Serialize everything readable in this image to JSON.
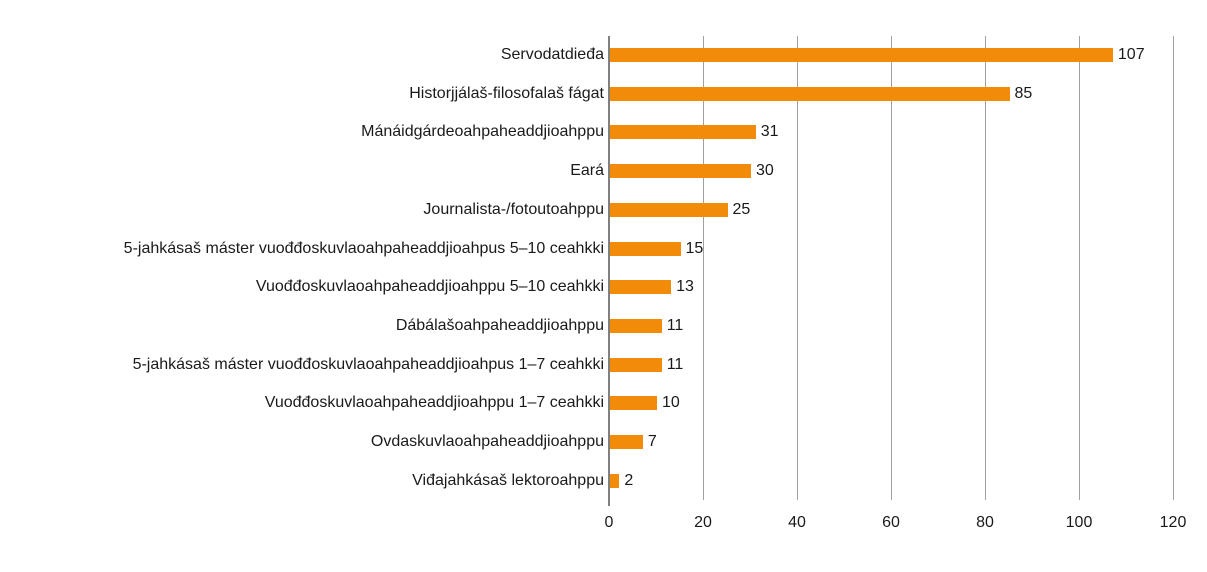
{
  "chart_data": {
    "type": "bar",
    "orientation": "horizontal",
    "title": "",
    "xlabel": "",
    "ylabel": "",
    "categories": [
      "Servodatdieđa",
      "Historjjálaš-filosofalaš fágat",
      "Mánáidgárdeoahpaheaddjioahppu",
      "Eará",
      "Journalista-/fotoutoahppu",
      "5-jahkásaš máster vuođđoskuvlaoahpaheaddjioahpus 5–10 ceahkki",
      "Vuođđoskuvlaoahpaheaddjioahppu 5–10 ceahkki",
      "Dábálašoahpaheaddjioahppu",
      "5-jahkásaš máster vuođđoskuvlaoahpaheaddjioahpus 1–7 ceahkki",
      "Vuođđoskuvlaoahpaheaddjioahppu 1–7 ceahkki",
      "Ovdaskuvlaoahpaheaddjioahppu",
      "Viđajahkásaš lektoroahppu"
    ],
    "values": [
      107,
      85,
      31,
      30,
      25,
      15,
      13,
      11,
      11,
      10,
      7,
      2
    ],
    "xlim": [
      0,
      120
    ],
    "x_ticks": [
      "0",
      "20",
      "40",
      "60",
      "80",
      "100",
      "120"
    ],
    "grid": "vertical",
    "legend": "none",
    "data_labels": true,
    "bar_color": "#f28b0a"
  }
}
